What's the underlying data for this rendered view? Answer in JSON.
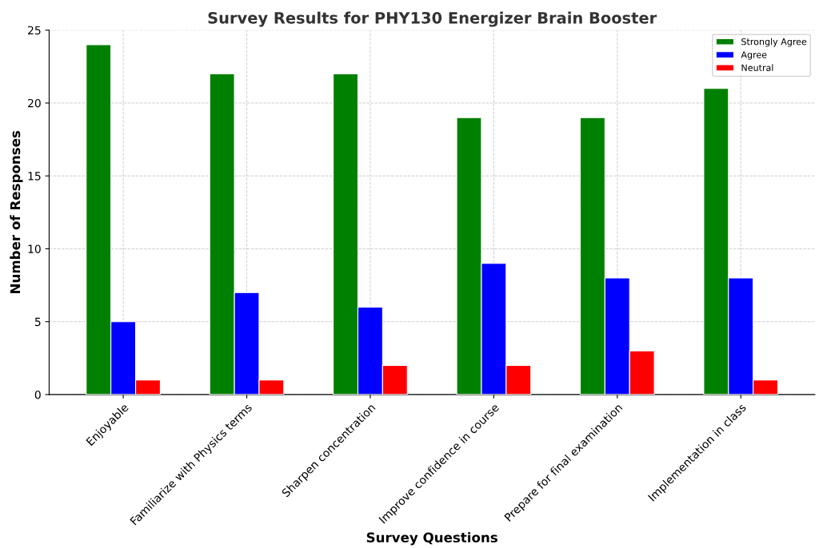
{
  "chart_data": {
    "type": "bar",
    "title": "Survey Results for PHY130 Energizer Brain Booster",
    "xlabel": "Survey Questions",
    "ylabel": "Number of Responses",
    "categories": [
      "Enjoyable",
      "Familiarize with Physics terms",
      "Sharpen concentration",
      "Improve confidence in course",
      "Prepare for final examination",
      "Implementation in class"
    ],
    "series": [
      {
        "name": "Strongly Agree",
        "color": "#008000",
        "values": [
          24,
          22,
          22,
          19,
          19,
          21
        ]
      },
      {
        "name": "Agree",
        "color": "#0000ff",
        "values": [
          5,
          7,
          6,
          9,
          8,
          8
        ]
      },
      {
        "name": "Neutral",
        "color": "#ff0000",
        "values": [
          1,
          1,
          2,
          2,
          3,
          1
        ]
      }
    ],
    "ylim": [
      0,
      25
    ],
    "yticks": [
      0,
      5,
      10,
      15,
      20,
      25
    ],
    "grid": true,
    "legend": "top right"
  }
}
